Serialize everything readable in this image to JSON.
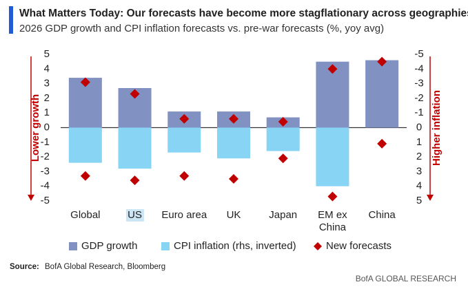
{
  "chart_data": {
    "type": "bar",
    "title": "What Matters Today: Our forecasts have become more stagflationary across geographies",
    "subtitle": "2026 GDP growth and CPI inflation forecasts vs. pre-war forecasts (%, yoy avg)",
    "ylabel": "Lower growth",
    "y2label": "Higher inflation",
    "categories": [
      "Global",
      "US",
      "Euro area",
      "UK",
      "Japan",
      "EM ex China",
      "China"
    ],
    "series": [
      {
        "name": "GDP growth",
        "color": "#8191c2",
        "values": [
          3.4,
          2.7,
          1.1,
          1.1,
          0.7,
          4.5,
          4.6
        ]
      },
      {
        "name": "CPI inflation (rhs, inverted)",
        "color": "#87d4f5",
        "axis": "y2",
        "values": [
          2.4,
          2.8,
          1.7,
          2.1,
          1.6,
          4.0,
          null
        ]
      },
      {
        "name": "New forecasts",
        "color": "#c00000",
        "values": [
          3.1,
          2.3,
          0.6,
          0.6,
          0.4,
          4.0,
          4.5
        ],
        "y2_values": [
          3.3,
          3.6,
          3.3,
          3.5,
          2.1,
          4.7,
          1.1
        ]
      }
    ],
    "ylim": [
      -5,
      5
    ],
    "yticks": [
      -5,
      -4,
      -3,
      -2,
      -1,
      0,
      1,
      2,
      3,
      4,
      5
    ],
    "y2lim": [
      5,
      -5
    ],
    "y2ticks": [
      -5,
      -4,
      -3,
      -2,
      -1,
      0,
      1,
      2,
      3,
      4,
      5
    ],
    "source_label": "Source:",
    "source": "BofA Global Research, Bloomberg",
    "footer": "BofA GLOBAL RESEARCH"
  }
}
